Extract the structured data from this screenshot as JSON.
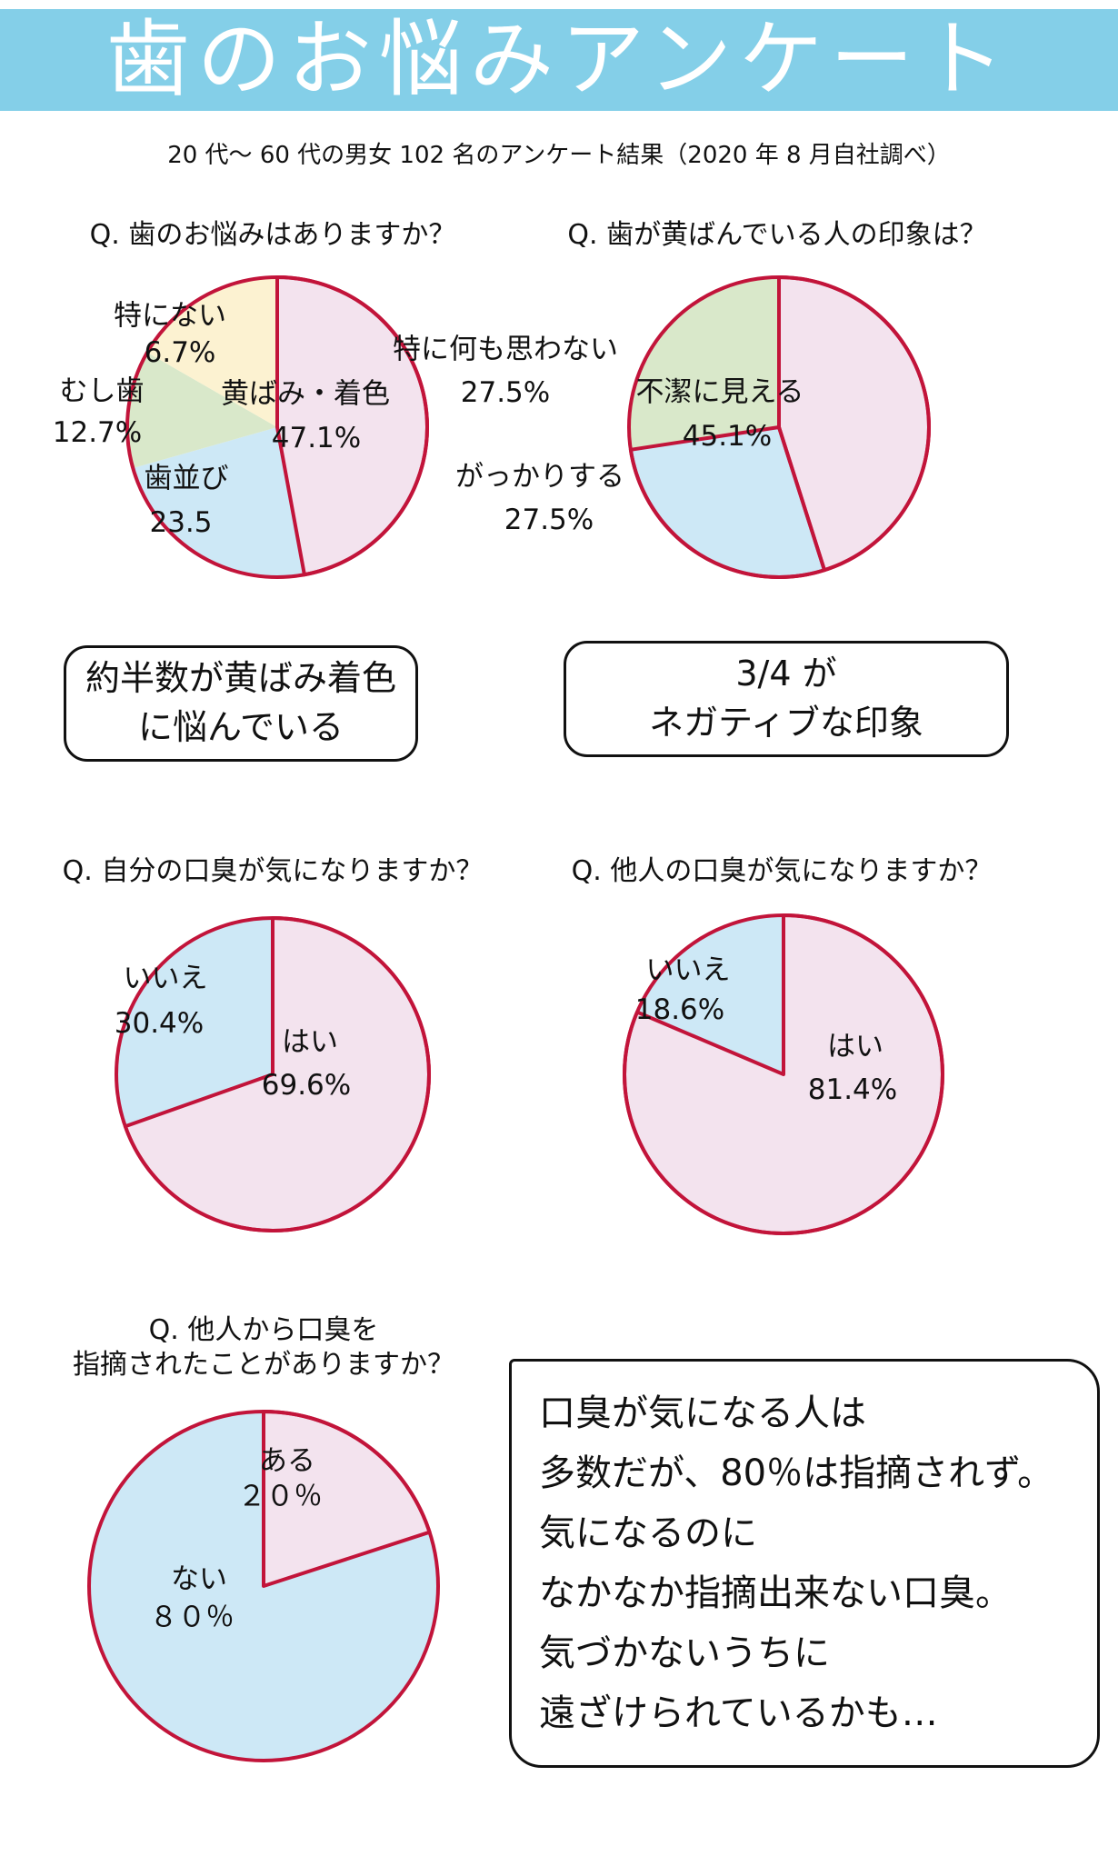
{
  "page": {
    "title": "歯のお悩みアンケート",
    "subtitle": "20 代〜 60 代の男女 102 名のアンケート結果（2020 年 8 月自社調べ）"
  },
  "colors": {
    "header_bg": "#84cfe8",
    "title_text": "#ffffff",
    "text": "#111111",
    "pink": "#f3e3ee",
    "blue": "#cde8f6",
    "green": "#d9e8ca",
    "cream": "#fcf2d1",
    "stroke_red": "#c2143a",
    "box_border": "#111111"
  },
  "callouts": {
    "left": {
      "line1": "約半数が黄ばみ着色",
      "line2": "に悩んでいる"
    },
    "right": {
      "line1": "3/4 が",
      "line2": "ネガティブな印象"
    }
  },
  "summary_box": {
    "lines": [
      "口臭が気になる人は",
      "多数だが、80％は指摘されず。",
      "気になるのに",
      "なかなか指摘出来ない口臭。",
      "気づかないうちに",
      "遠ざけられているかも…"
    ]
  },
  "chart_data": [
    {
      "type": "pie",
      "title": "Q. 歯のお悩みはありますか？",
      "start_angle_deg": 0,
      "direction": "clockwise",
      "slices": [
        {
          "label": "黄ばみ・着色",
          "value": 47.1,
          "value_text": "47.1%",
          "color": "pink",
          "outlined": true
        },
        {
          "label": "歯並び",
          "value": 23.5,
          "value_text": "23.5",
          "color": "blue",
          "outlined": false
        },
        {
          "label": "むし歯",
          "value": 12.7,
          "value_text": "12.7%",
          "color": "green",
          "outlined": false
        },
        {
          "label": "特にない",
          "value": 6.7,
          "value_text": "6.7%",
          "color": "cream",
          "outlined": false
        }
      ]
    },
    {
      "type": "pie",
      "title": "Q. 歯が黄ばんでいる人の印象は？",
      "start_angle_deg": 0,
      "direction": "clockwise",
      "slices": [
        {
          "label": "不潔に見える",
          "value": 45.1,
          "value_text": "45.1%",
          "color": "pink",
          "outlined": true
        },
        {
          "label": "がっかりする",
          "value": 27.5,
          "value_text": "27.5%",
          "color": "blue",
          "outlined": true
        },
        {
          "label": "特に何も思わない",
          "value": 27.5,
          "value_text": "27.5%",
          "color": "green",
          "outlined": false
        }
      ]
    },
    {
      "type": "pie",
      "title": "Q. 自分の口臭が気になりますか？",
      "start_angle_deg": 0,
      "direction": "clockwise",
      "slices": [
        {
          "label": "はい",
          "value": 69.6,
          "value_text": "69.6%",
          "color": "pink",
          "outlined": true
        },
        {
          "label": "いいえ",
          "value": 30.4,
          "value_text": "30.4%",
          "color": "blue",
          "outlined": false
        }
      ]
    },
    {
      "type": "pie",
      "title": "Q. 他人の口臭が気になりますか？",
      "start_angle_deg": 0,
      "direction": "clockwise",
      "slices": [
        {
          "label": "はい",
          "value": 81.4,
          "value_text": "81.4%",
          "color": "pink",
          "outlined": true
        },
        {
          "label": "いいえ",
          "value": 18.6,
          "value_text": "18.6%",
          "color": "blue",
          "outlined": false
        }
      ]
    },
    {
      "type": "pie",
      "title": "Q. 他人から口臭を指摘されたことがありますか？",
      "title_lines": [
        "Q. 他人から口臭を",
        "指摘されたことがありますか？"
      ],
      "start_angle_deg": 0,
      "direction": "clockwise",
      "slices": [
        {
          "label": "ある",
          "value": 20,
          "value_text": "２０％",
          "color": "pink",
          "outlined": true
        },
        {
          "label": "ない",
          "value": 80,
          "value_text": "８０％",
          "color": "blue",
          "outlined": false
        }
      ]
    }
  ]
}
